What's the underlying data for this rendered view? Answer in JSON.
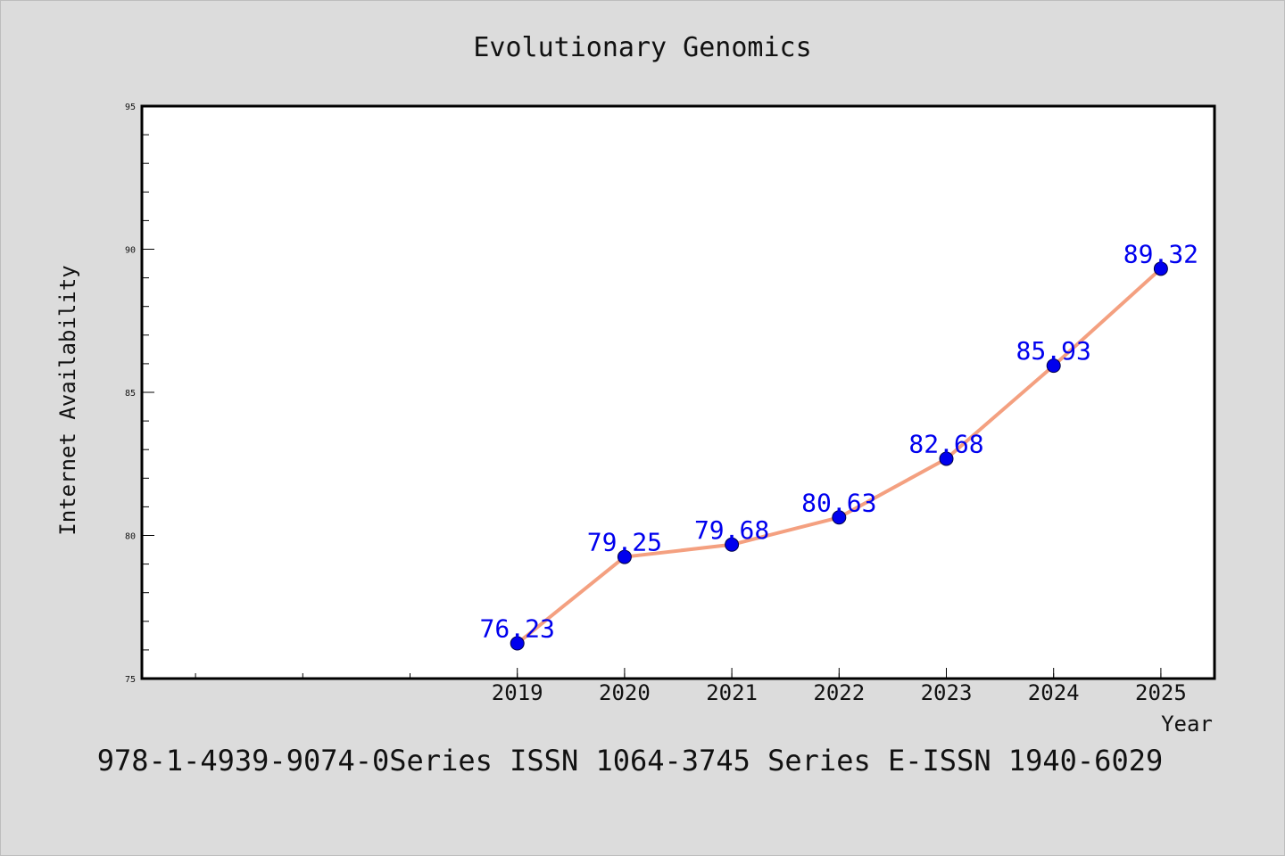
{
  "chart_data": {
    "type": "line",
    "title": "Evolutionary Genomics",
    "xlabel": "Year",
    "ylabel": "Internet Availability",
    "x": [
      "2019",
      "2020",
      "2021",
      "2022",
      "2023",
      "2024",
      "2025"
    ],
    "series": [
      {
        "values": [
          76.23,
          79.25,
          79.68,
          80.63,
          82.68,
          85.93,
          89.32
        ],
        "labels": [
          "76.23",
          "79.25",
          "79.68",
          "80.63",
          "82.68",
          "85.93",
          "89.32"
        ]
      }
    ],
    "ylim": [
      75,
      95
    ],
    "yticks": [
      75,
      80,
      85,
      90,
      95
    ],
    "xlim": [
      2015.5,
      2025.5
    ],
    "grid": false,
    "legend": "none",
    "colors": {
      "background": "#dcdcdc",
      "plot_area": "#ffffff",
      "line": "#f4a080",
      "marker": "#0000ee",
      "data_label": "#0000ee"
    }
  },
  "footer": {
    "text": "978-1-4939-9074-0Series ISSN 1064-3745 Series E-ISSN 1940-6029"
  }
}
